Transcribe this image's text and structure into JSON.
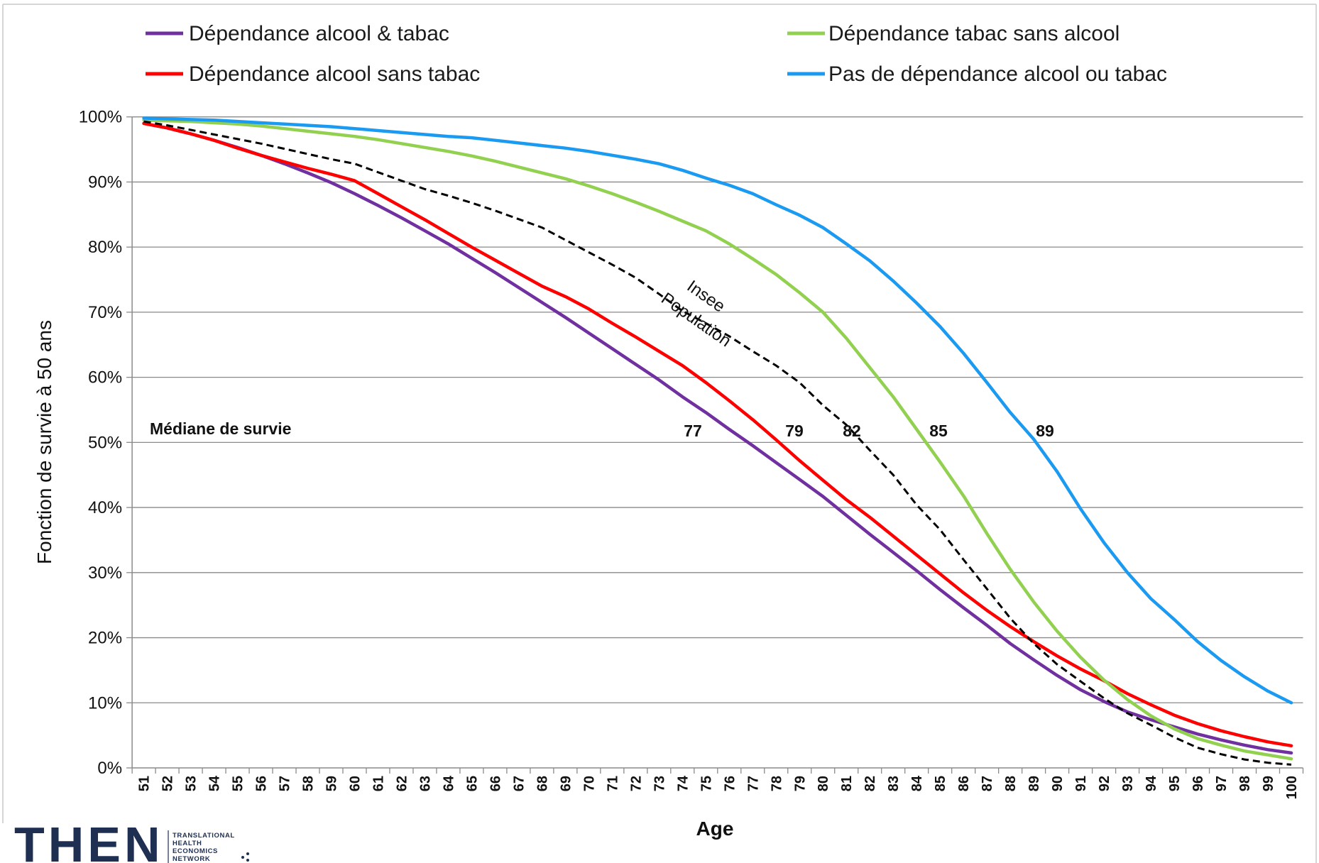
{
  "chart_data": {
    "type": "line",
    "xlabel": "Age",
    "ylabel": "Fonction de survie à 50 ans",
    "ylim": [
      0,
      100
    ],
    "yticks": [
      "0%",
      "10%",
      "20%",
      "30%",
      "40%",
      "50%",
      "60%",
      "70%",
      "80%",
      "90%",
      "100%"
    ],
    "grid": true,
    "legend": "top",
    "x": [
      51,
      52,
      53,
      54,
      55,
      56,
      57,
      58,
      59,
      60,
      61,
      62,
      63,
      64,
      65,
      66,
      67,
      68,
      69,
      70,
      71,
      72,
      73,
      74,
      75,
      76,
      77,
      78,
      79,
      80,
      81,
      82,
      83,
      84,
      85,
      86,
      87,
      88,
      89,
      90,
      91,
      92,
      93,
      94,
      95,
      96,
      97,
      98,
      99,
      100
    ],
    "series": [
      {
        "name": "Dépendance alcool & tabac",
        "color": "#7030A0",
        "values": [
          99.0,
          98.3,
          97.4,
          96.4,
          95.3,
          94.1,
          92.8,
          91.4,
          89.9,
          88.2,
          86.4,
          84.5,
          82.5,
          80.5,
          78.3,
          76.1,
          73.8,
          71.5,
          69.2,
          66.8,
          64.4,
          62.0,
          59.6,
          57.0,
          54.6,
          52.0,
          49.5,
          46.9,
          44.3,
          41.7,
          38.8,
          35.9,
          33.1,
          30.3,
          27.4,
          24.6,
          21.9,
          19.1,
          16.6,
          14.2,
          12.0,
          10.2,
          8.6,
          7.4,
          6.3,
          5.2,
          4.3,
          3.5,
          2.8,
          2.3
        ]
      },
      {
        "name": "Dépendance alcool sans tabac",
        "color": "#FF0000",
        "values": [
          99.0,
          98.3,
          97.4,
          96.4,
          95.2,
          94.1,
          93.1,
          92.1,
          91.2,
          90.2,
          88.2,
          86.2,
          84.2,
          82.1,
          80.0,
          78.0,
          76.0,
          74.0,
          72.4,
          70.5,
          68.3,
          66.2,
          64.0,
          61.8,
          59.2,
          56.4,
          53.5,
          50.4,
          47.2,
          44.2,
          41.2,
          38.5,
          35.6,
          32.7,
          29.8,
          26.9,
          24.2,
          21.7,
          19.4,
          17.2,
          15.2,
          13.4,
          11.4,
          9.7,
          8.1,
          6.8,
          5.7,
          4.8,
          4.0,
          3.4
        ]
      },
      {
        "name": "Dépendance tabac sans alcool",
        "color": "#92D050",
        "values": [
          99.5,
          99.4,
          99.3,
          99.1,
          98.9,
          98.6,
          98.2,
          97.8,
          97.4,
          97.0,
          96.5,
          95.9,
          95.3,
          94.7,
          94.0,
          93.2,
          92.3,
          91.4,
          90.5,
          89.4,
          88.2,
          86.9,
          85.5,
          84.0,
          82.5,
          80.5,
          78.2,
          75.8,
          73.0,
          70.0,
          66.0,
          61.5,
          57.0,
          52.0,
          47.0,
          41.8,
          36.0,
          30.5,
          25.5,
          21.0,
          17.0,
          13.5,
          10.5,
          8.0,
          6.0,
          4.5,
          3.5,
          2.6,
          2.0,
          1.4
        ]
      },
      {
        "name": "Pas de dépendance alcool ou tabac",
        "color": "#1B9AF2",
        "values": [
          99.8,
          99.7,
          99.6,
          99.5,
          99.3,
          99.1,
          98.9,
          98.7,
          98.5,
          98.2,
          97.9,
          97.6,
          97.3,
          97.0,
          96.8,
          96.4,
          96.0,
          95.6,
          95.2,
          94.7,
          94.1,
          93.5,
          92.8,
          91.8,
          90.6,
          89.5,
          88.2,
          86.5,
          84.9,
          83.0,
          80.5,
          77.9,
          74.8,
          71.4,
          67.8,
          63.7,
          59.2,
          54.6,
          50.5,
          45.5,
          39.8,
          34.6,
          30.0,
          26.0,
          22.8,
          19.4,
          16.5,
          14.0,
          11.8,
          10.0
        ]
      },
      {
        "label": [
          "Insee",
          "Population"
        ],
        "color": "#000000",
        "dashed": true,
        "values": [
          99.3,
          98.7,
          98.0,
          97.3,
          96.6,
          95.9,
          95.1,
          94.3,
          93.5,
          92.8,
          91.5,
          90.2,
          88.9,
          87.9,
          86.8,
          85.6,
          84.3,
          83.0,
          81.1,
          79.2,
          77.3,
          75.3,
          72.8,
          70.2,
          68.3,
          66.3,
          64.0,
          61.8,
          59.2,
          55.7,
          52.7,
          48.8,
          45.0,
          40.4,
          36.6,
          32.0,
          27.5,
          23.0,
          19.1,
          15.9,
          13.3,
          10.7,
          8.4,
          6.6,
          4.7,
          3.1,
          2.1,
          1.3,
          0.8,
          0.5
        ]
      }
    ],
    "median": {
      "label": "Médiane de survie",
      "values": [
        77,
        79,
        82,
        85,
        89
      ]
    }
  },
  "logo": {
    "text": "THEN",
    "lines": [
      "TRANSLATIONAL",
      "HEALTH",
      "ECONOMICS",
      "NETWORK"
    ]
  }
}
